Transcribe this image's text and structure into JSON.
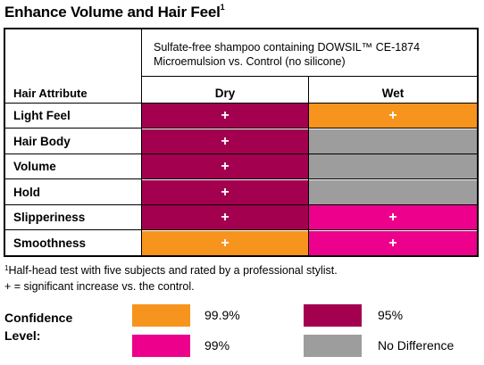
{
  "title": "Enhance Volume and Hair Feel",
  "title_sup": "1",
  "table": {
    "description": "Sulfate-free shampoo containing DOWSIL™ CE-1874",
    "description_line2": "Microemulsion vs. Control (no silicone)",
    "attr_header": "Hair Attribute",
    "col_dry": "Dry",
    "col_wet": "Wet",
    "rows": [
      {
        "label": "Light Feel",
        "dry": {
          "level": "95%",
          "mark": "+"
        },
        "wet": {
          "level": "99.9%",
          "mark": "+"
        }
      },
      {
        "label": "Hair Body",
        "dry": {
          "level": "95%",
          "mark": "+"
        },
        "wet": {
          "level": "No Difference",
          "mark": ""
        }
      },
      {
        "label": "Volume",
        "dry": {
          "level": "95%",
          "mark": "+"
        },
        "wet": {
          "level": "No Difference",
          "mark": ""
        }
      },
      {
        "label": "Hold",
        "dry": {
          "level": "95%",
          "mark": "+"
        },
        "wet": {
          "level": "No Difference",
          "mark": ""
        }
      },
      {
        "label": "Slipperiness",
        "dry": {
          "level": "95%",
          "mark": "+"
        },
        "wet": {
          "level": "99%",
          "mark": "+"
        }
      },
      {
        "label": "Smoothness",
        "dry": {
          "level": "99.9%",
          "mark": "+"
        },
        "wet": {
          "level": "99%",
          "mark": "+"
        }
      }
    ]
  },
  "footnote_sup": "1",
  "footnote_line1": "Half-head test with five subjects and rated by a professional stylist.",
  "footnote_line2": "+ = significant increase vs. the control.",
  "legend": {
    "label_line1": "Confidence",
    "label_line2": "Level:",
    "items": [
      {
        "label": "99.9%",
        "color": "#F7941D"
      },
      {
        "label": "95%",
        "color": "#A3004F"
      },
      {
        "label": "99%",
        "color": "#EC008C"
      },
      {
        "label": "No Difference",
        "color": "#9D9D9D"
      }
    ]
  }
}
